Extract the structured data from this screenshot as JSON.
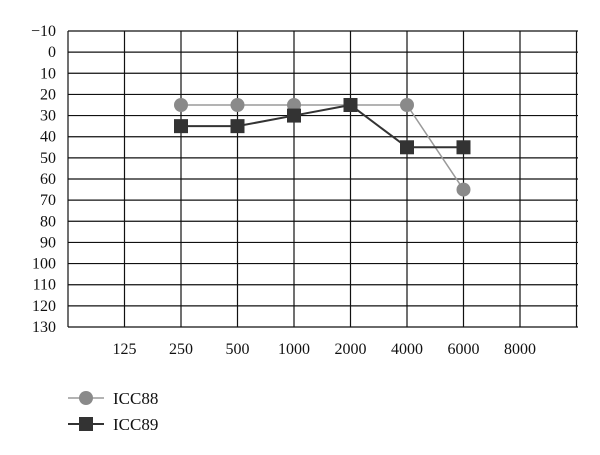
{
  "chart_data": {
    "type": "line",
    "title": "",
    "xlabel": "",
    "ylabel": "",
    "categories": [
      "125",
      "250",
      "500",
      "1000",
      "2000",
      "4000",
      "6000",
      "8000"
    ],
    "y_ticks": [
      "−10",
      "0",
      "10",
      "20",
      "30",
      "40",
      "50",
      "60",
      "70",
      "80",
      "90",
      "100",
      "110",
      "120",
      "130"
    ],
    "ylim": [
      -10,
      130
    ],
    "y_inverted": true,
    "grid": true,
    "legend_position": "bottom-left",
    "series": [
      {
        "name": "ICC88",
        "marker": "circle",
        "color": "#8a8a8a",
        "line_color": "#9a9a9a",
        "x": [
          "250",
          "500",
          "1000",
          "2000",
          "4000",
          "6000"
        ],
        "values": [
          25,
          25,
          25,
          25,
          25,
          65
        ]
      },
      {
        "name": "ICC89",
        "marker": "square",
        "color": "#333333",
        "line_color": "#333333",
        "x": [
          "250",
          "500",
          "1000",
          "2000",
          "4000",
          "6000"
        ],
        "values": [
          35,
          35,
          30,
          25,
          45,
          45
        ]
      }
    ]
  }
}
